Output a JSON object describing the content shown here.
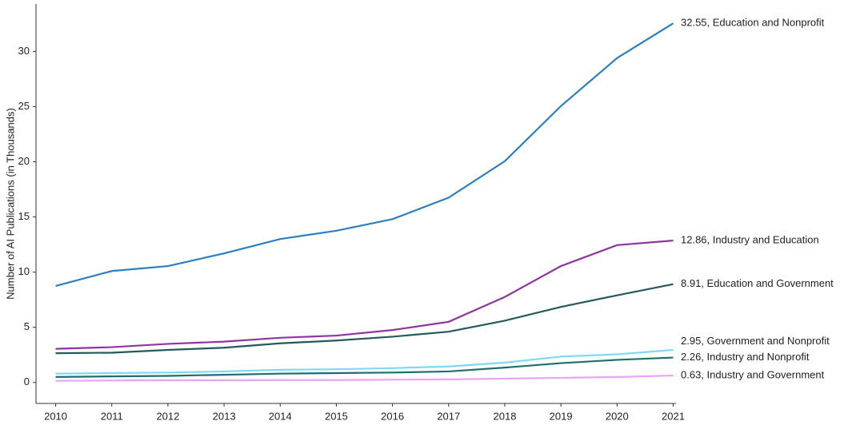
{
  "chart_data": {
    "type": "line",
    "y_label": "Number of AI Publications (in Thousands)",
    "x": [
      2010,
      2011,
      2012,
      2013,
      2014,
      2015,
      2016,
      2017,
      2018,
      2019,
      2020,
      2021
    ],
    "xlim": [
      2009.65,
      2021.05
    ],
    "xticks": [
      2010,
      2011,
      2012,
      2013,
      2014,
      2015,
      2016,
      2017,
      2018,
      2019,
      2020,
      2021
    ],
    "ylim": [
      -1.9,
      34.3
    ],
    "yticks": [
      0,
      5,
      10,
      15,
      20,
      25,
      30
    ],
    "grid": false,
    "series": [
      {
        "name": "32.55, Education and Nonprofit",
        "color": "#2e7fbf",
        "values": [
          8.75,
          10.1,
          10.55,
          11.7,
          13.0,
          13.75,
          14.8,
          16.75,
          20.05,
          25.05,
          29.4,
          32.55
        ]
      },
      {
        "name": "12.86, Industry and Education",
        "color": "#8e35a0",
        "values": [
          3.05,
          3.2,
          3.5,
          3.7,
          4.05,
          4.25,
          4.75,
          5.5,
          7.75,
          10.55,
          12.45,
          12.86
        ]
      },
      {
        "name": "8.91, Education and Government",
        "color": "#245a5a",
        "values": [
          2.65,
          2.7,
          2.95,
          3.15,
          3.55,
          3.8,
          4.15,
          4.6,
          5.6,
          6.85,
          7.9,
          8.91
        ]
      },
      {
        "name": "2.95, Government and Nonprofit",
        "color": "#7fd8f5",
        "values": [
          0.8,
          0.85,
          0.9,
          1.0,
          1.15,
          1.2,
          1.3,
          1.45,
          1.8,
          2.35,
          2.55,
          2.95
        ]
      },
      {
        "name": "2.26, Industry and Nonprofit",
        "color": "#1f6e6e",
        "values": [
          0.5,
          0.55,
          0.6,
          0.7,
          0.8,
          0.85,
          0.9,
          1.0,
          1.35,
          1.75,
          2.05,
          2.26
        ]
      },
      {
        "name": "0.63, Industry and Government",
        "color": "#e8a5f5",
        "values": [
          0.15,
          0.18,
          0.2,
          0.2,
          0.22,
          0.22,
          0.25,
          0.28,
          0.35,
          0.42,
          0.5,
          0.63
        ]
      }
    ]
  }
}
